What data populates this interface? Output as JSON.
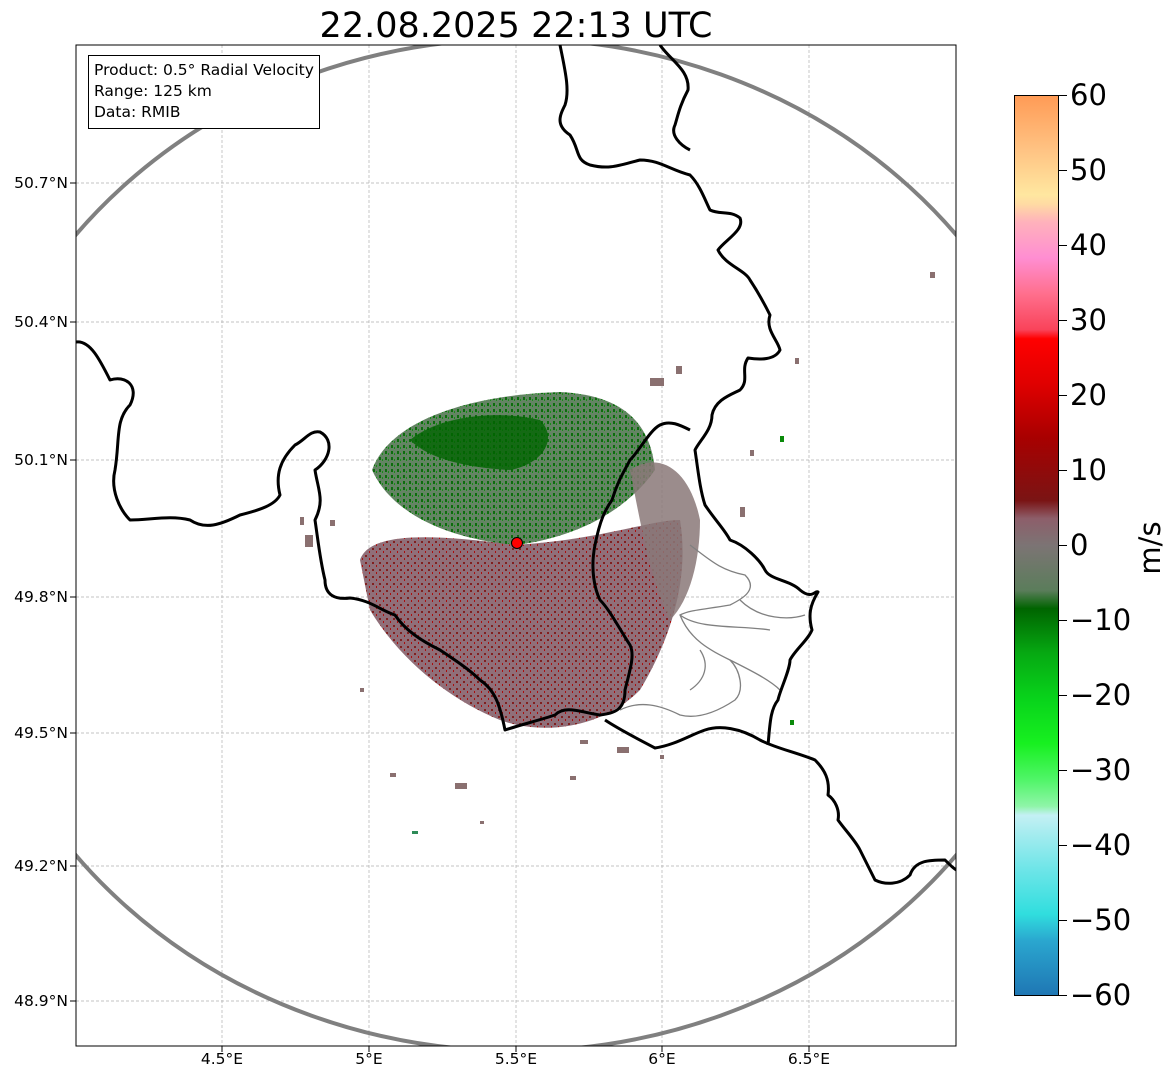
{
  "title": "22.08.2025 22:13 UTC",
  "infobox": {
    "product": "Product: 0.5° Radial Velocity",
    "range": "Range: 125 km",
    "data": "Data: RMIB"
  },
  "lat_labels": [
    "50.7°N",
    "50.4°N",
    "50.1°N",
    "49.8°N",
    "49.5°N",
    "49.2°N",
    "48.9°N"
  ],
  "lon_labels": [
    "4.5°E",
    "5°E",
    "5.5°E",
    "6°E",
    "6.5°E"
  ],
  "colorbar": {
    "unit": "m/s",
    "ticks": [
      "60",
      "50",
      "40",
      "30",
      "20",
      "10",
      "0",
      "−10",
      "−20",
      "−30",
      "−40",
      "−50",
      "−60"
    ],
    "min": -60,
    "max": 60
  },
  "map": {
    "radar_site": {
      "lat": 49.914,
      "lon": 5.505
    },
    "range_ring_km": 125,
    "extent": {
      "lon_min": 4.0,
      "lon_max": 7.0,
      "lat_min": 48.8,
      "lat_max": 50.98
    },
    "colors": {
      "ring": "#808080",
      "border": "#000000",
      "admin": "#808080",
      "site_marker": "#ff0000",
      "grid": "#b0b0b0"
    }
  }
}
